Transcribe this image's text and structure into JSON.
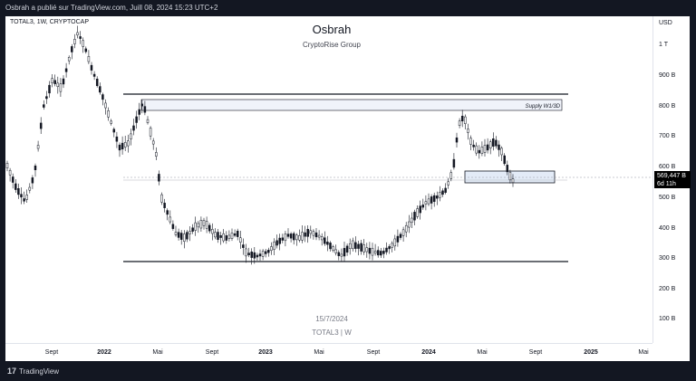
{
  "header": {
    "published_text": "Osbrah a publié sur TradingView.com, Juill 08, 2024 15:23 UTC+2"
  },
  "chart": {
    "symbol": "TOTAL3, 1W, CRYPTOCAP",
    "author": "Osbrah",
    "group": "CryptoRise Group",
    "watermark_date": "15/7/2024",
    "watermark_symbol": "TOTAL3 | W",
    "supply_label": "Supply W1/3D",
    "currency": "USD",
    "price_tag_value": "569,447 B",
    "price_tag_timer": "6d 11h",
    "price_labels": [
      "1 T",
      "900 B",
      "800 B",
      "700 B",
      "600 B",
      "500 B",
      "400 B",
      "300 B",
      "200 B",
      "100 B"
    ],
    "time_labels": [
      "Sept",
      "2022",
      "Mai",
      "Sept",
      "2023",
      "Mai",
      "Sept",
      "2024",
      "Mai",
      "Sept",
      "2025",
      "Mai"
    ],
    "colors": {
      "candle": "#131722",
      "level": "#131722",
      "zone_fill": "#f0f3fa",
      "zone_blue": "#b2c7e8"
    }
  },
  "footer": {
    "logo_text": "TradingView"
  }
}
